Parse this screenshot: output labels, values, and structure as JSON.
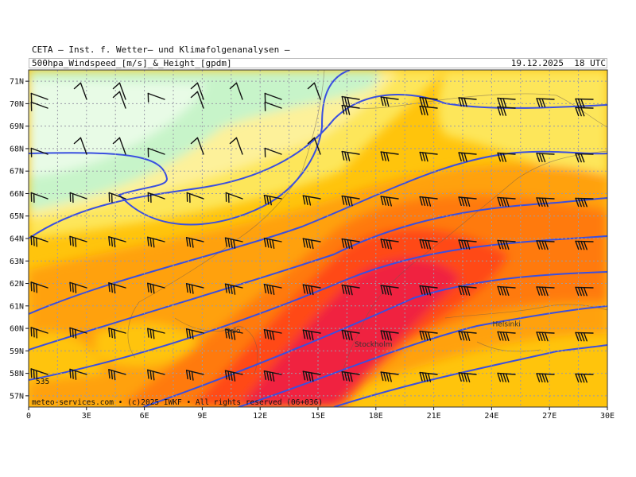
{
  "header": {
    "institute": "CETA — Inst. f. Wetter— und Klimafolgenanalysen —",
    "product": "500hpa_Windspeed_[m/s]_&_Height_[gpdm]",
    "valid_time": "19.12.2025  18 UTC"
  },
  "footer": {
    "credit": "meteo-services.com • (c)2025 IWKF • All rights reserved (06+036)"
  },
  "map": {
    "projection": "lat-lon",
    "lon_range": [
      0,
      30
    ],
    "lat_range": [
      56.5,
      71.5
    ],
    "lon_ticks": [
      "0",
      "3E",
      "6E",
      "9E",
      "12E",
      "15E",
      "18E",
      "21E",
      "24E",
      "27E",
      "30E"
    ],
    "lat_ticks": [
      "57N",
      "58N",
      "59N",
      "60N",
      "61N",
      "62N",
      "63N",
      "64N",
      "65N",
      "66N",
      "67N",
      "68N",
      "69N",
      "70N",
      "71N"
    ],
    "grid": true,
    "contour_color": "#3a4fe0",
    "contour_label": "535",
    "cities": [
      {
        "name": "Oslo",
        "lon": 10.7,
        "lat": 59.9
      },
      {
        "name": "Stockholm",
        "lon": 18.0,
        "lat": 59.3
      },
      {
        "name": "Helsinki",
        "lon": 24.9,
        "lat": 60.2
      }
    ],
    "wind_speed_colors": [
      "#e8fbe6",
      "#c7f4c9",
      "#fdf19a",
      "#fde65a",
      "#ffc40c",
      "#ffa10c",
      "#ff7a08",
      "#ff4a12",
      "#f02440"
    ]
  }
}
